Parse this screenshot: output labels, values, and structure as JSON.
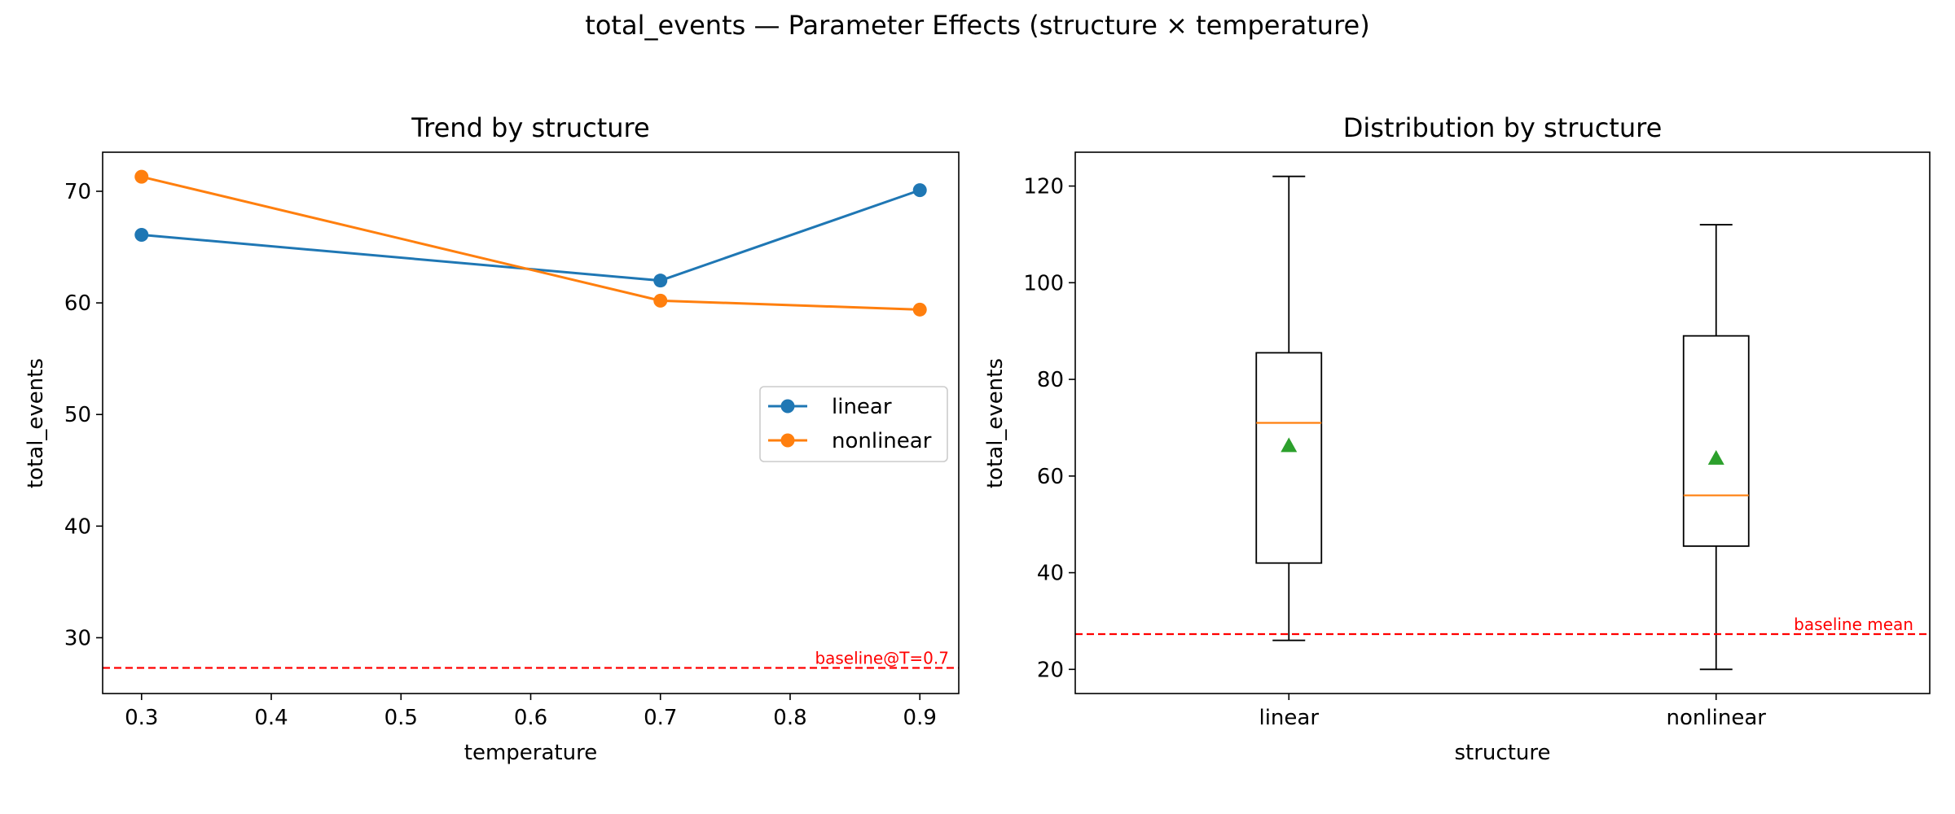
{
  "figure": {
    "suptitle": "total_events — Parameter Effects (structure × temperature)"
  },
  "colors": {
    "linear": "#1f77b4",
    "nonlinear": "#ff7f0e",
    "baseline": "#ff0000",
    "median": "#ff7f0e",
    "mean_marker": "#2ca02c"
  },
  "chart_data": [
    {
      "type": "line",
      "title": "Trend by structure",
      "xlabel": "temperature",
      "ylabel": "total_events",
      "xlim": [
        0.27,
        0.93
      ],
      "ylim": [
        25,
        73.5
      ],
      "xticks": [
        0.3,
        0.4,
        0.5,
        0.6,
        0.7,
        0.8,
        0.9
      ],
      "xtick_labels": [
        "0.3",
        "0.4",
        "0.5",
        "0.6",
        "0.7",
        "0.8",
        "0.9"
      ],
      "yticks": [
        30,
        40,
        50,
        60,
        70
      ],
      "ytick_labels": [
        "30",
        "40",
        "50",
        "60",
        "70"
      ],
      "x": [
        0.3,
        0.7,
        0.9
      ],
      "series": [
        {
          "name": "linear",
          "values": [
            66.1,
            62.0,
            70.1
          ]
        },
        {
          "name": "nonlinear",
          "values": [
            71.3,
            60.2,
            59.4
          ]
        }
      ],
      "baseline": {
        "label": "baseline@T=0.7",
        "value": 27.3
      },
      "legend": "center-right",
      "grid": false
    },
    {
      "type": "box",
      "title": "Distribution by structure",
      "xlabel": "structure",
      "ylabel": "total_events",
      "ylim": [
        15,
        127
      ],
      "yticks": [
        20,
        40,
        60,
        80,
        100,
        120
      ],
      "ytick_labels": [
        "20",
        "40",
        "60",
        "80",
        "100",
        "120"
      ],
      "categories": [
        "linear",
        "nonlinear"
      ],
      "boxes": [
        {
          "name": "linear",
          "whisker_low": 26,
          "q1": 42,
          "median": 71,
          "q3": 85.5,
          "whisker_high": 122,
          "mean": 66.3
        },
        {
          "name": "nonlinear",
          "whisker_low": 20,
          "q1": 45.5,
          "median": 56,
          "q3": 89,
          "whisker_high": 112,
          "mean": 63.7
        }
      ],
      "baseline": {
        "label": "baseline mean",
        "value": 27.3
      },
      "grid": false
    }
  ]
}
